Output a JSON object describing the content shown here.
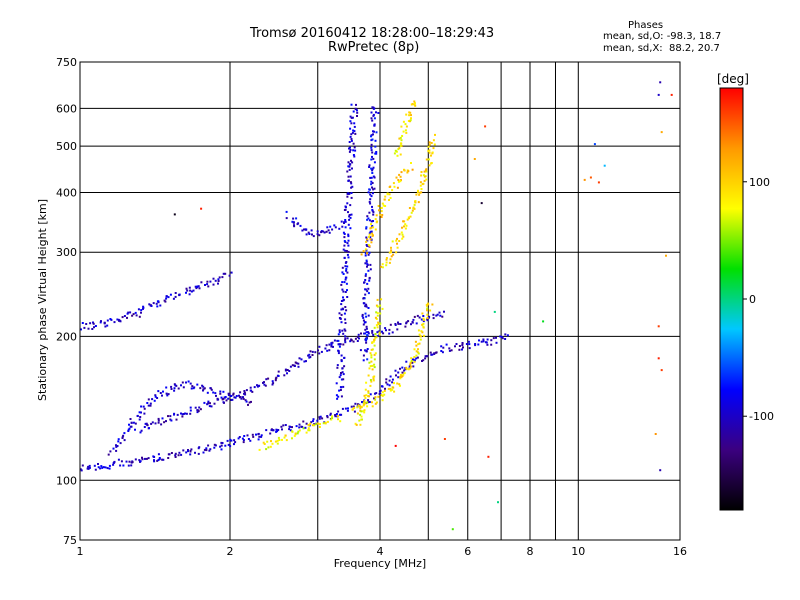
{
  "chart_data": {
    "type": "scatter",
    "title": "Tromsø 20160412 18:28:00–18:29:43",
    "subtitle": "RwPretec (8p)",
    "xlabel": "Frequency [MHz]",
    "ylabel": "Stationary phase Virtual Height [km]",
    "x_scale": "log",
    "y_scale": "log",
    "xlim": [
      1,
      16
    ],
    "ylim": [
      75,
      750
    ],
    "x_ticks": [
      1,
      2,
      4,
      6,
      8,
      10,
      16
    ],
    "x_tick_labels": [
      "1",
      "2",
      "4",
      "6",
      "8",
      "10",
      "16"
    ],
    "x_grid": [
      1,
      2,
      3,
      4,
      5,
      6,
      7,
      8,
      9,
      10,
      16
    ],
    "y_ticks": [
      75,
      100,
      200,
      300,
      400,
      500,
      600,
      750
    ],
    "y_tick_labels": [
      "75",
      "100",
      "200",
      "300",
      "400",
      "500",
      "600",
      "750"
    ],
    "grid": true,
    "phases": {
      "heading": "Phases",
      "o_mode": "mean, sd,O: -98.3, 18.7",
      "x_mode": "mean, sd,X:  88.2, 20.7"
    },
    "colorbar": {
      "label": "[deg]",
      "range": [
        -180,
        180
      ],
      "ticks": [
        100,
        0,
        -100
      ],
      "tick_labels": [
        "100",
        "0",
        "-100"
      ],
      "colors": [
        "#000000",
        "#3b0080",
        "#0000ff",
        "#00c8ff",
        "#00e000",
        "#ffff00",
        "#ff9900",
        "#ff0000"
      ]
    },
    "series": [
      {
        "mode": "O",
        "phase_mean": -98.3,
        "phase_sd": 18.7
      },
      {
        "mode": "X",
        "phase_mean": 88.2,
        "phase_sd": 20.7
      }
    ],
    "traces": [
      {
        "x": [
          1.0,
          1.2,
          1.5,
          1.8,
          2.1,
          2.5,
          2.8,
          3.0,
          3.2,
          3.5,
          3.8,
          4.1,
          4.5,
          5.0,
          5.5,
          6.0,
          6.6,
          7.2
        ],
        "y": [
          106,
          109,
          113,
          117,
          122,
          128,
          131,
          134,
          137,
          142,
          148,
          160,
          175,
          185,
          190,
          193,
          196,
          200
        ],
        "phase": -100
      },
      {
        "x": [
          1.3,
          1.5,
          1.8,
          2.1,
          2.4,
          2.7,
          3.0,
          3.3,
          3.6,
          4.0,
          4.4,
          4.9,
          5.4
        ],
        "y": [
          128,
          135,
          145,
          152,
          162,
          175,
          188,
          195,
          200,
          205,
          212,
          220,
          225
        ],
        "phase": -105
      },
      {
        "x": [
          1.0,
          1.15,
          1.3,
          1.5,
          1.7,
          1.9,
          2.0
        ],
        "y": [
          210,
          215,
          225,
          240,
          255,
          265,
          270
        ],
        "phase": -100
      },
      {
        "x": [
          1.15,
          1.25,
          1.4,
          1.6,
          1.8,
          2.0,
          2.2
        ],
        "y": [
          115,
          130,
          150,
          160,
          155,
          150,
          145
        ],
        "phase": -100
      },
      {
        "x": [
          2.6,
          2.7,
          2.8,
          3.0,
          3.2,
          3.4
        ],
        "y": [
          360,
          345,
          335,
          330,
          340,
          345
        ],
        "phase": -95
      },
      {
        "x": [
          3.3,
          3.35,
          3.4,
          3.45,
          3.5,
          3.55
        ],
        "y": [
          150,
          220,
          300,
          400,
          500,
          620
        ],
        "phase": -95
      },
      {
        "x": [
          3.7,
          3.75,
          3.8,
          3.85,
          3.9
        ],
        "y": [
          180,
          260,
          360,
          480,
          620
        ],
        "phase": -90
      },
      {
        "x": [
          3.5,
          3.8,
          4.0,
          4.3,
          4.6,
          4.8,
          5.0
        ],
        "y": [
          140,
          145,
          150,
          160,
          175,
          200,
          240
        ],
        "phase": 90
      },
      {
        "x": [
          4.0,
          4.2,
          4.4,
          4.6,
          4.8,
          5.0,
          5.1
        ],
        "y": [
          280,
          300,
          330,
          370,
          410,
          470,
          530
        ],
        "phase": 95
      },
      {
        "x": [
          3.7,
          3.9,
          4.1,
          4.3,
          4.6
        ],
        "y": [
          300,
          350,
          390,
          420,
          460
        ],
        "phase": 100
      },
      {
        "x": [
          4.3,
          4.4,
          4.5,
          4.6,
          4.7
        ],
        "y": [
          480,
          520,
          560,
          600,
          630
        ],
        "phase": 90
      },
      {
        "x": [
          2.3,
          2.5,
          2.8,
          3.0,
          3.3
        ],
        "y": [
          118,
          122,
          128,
          132,
          136
        ],
        "phase": 80
      },
      {
        "x": [
          3.6,
          3.8,
          3.9,
          4.0
        ],
        "y": [
          130,
          160,
          200,
          240
        ],
        "phase": 85
      }
    ],
    "outliers": [
      {
        "x": 1.55,
        "y": 360,
        "phase": -170
      },
      {
        "x": 1.75,
        "y": 370,
        "phase": 170
      },
      {
        "x": 6.5,
        "y": 550,
        "phase": 160
      },
      {
        "x": 6.2,
        "y": 470,
        "phase": 120
      },
      {
        "x": 6.4,
        "y": 380,
        "phase": -160
      },
      {
        "x": 6.8,
        "y": 225,
        "phase": 0
      },
      {
        "x": 8.5,
        "y": 215,
        "phase": 20
      },
      {
        "x": 4.3,
        "y": 118,
        "phase": 180
      },
      {
        "x": 5.4,
        "y": 122,
        "phase": 160
      },
      {
        "x": 6.6,
        "y": 112,
        "phase": 170
      },
      {
        "x": 6.9,
        "y": 90,
        "phase": 0
      },
      {
        "x": 5.6,
        "y": 79,
        "phase": 40
      },
      {
        "x": 10.3,
        "y": 425,
        "phase": 130
      },
      {
        "x": 10.6,
        "y": 430,
        "phase": 150
      },
      {
        "x": 11.0,
        "y": 420,
        "phase": 160
      },
      {
        "x": 10.8,
        "y": 505,
        "phase": -60
      },
      {
        "x": 11.3,
        "y": 455,
        "phase": -30
      },
      {
        "x": 14.5,
        "y": 640,
        "phase": -100
      },
      {
        "x": 14.6,
        "y": 680,
        "phase": -110
      },
      {
        "x": 15.4,
        "y": 640,
        "phase": 170
      },
      {
        "x": 14.7,
        "y": 535,
        "phase": 120
      },
      {
        "x": 14.5,
        "y": 210,
        "phase": 160
      },
      {
        "x": 15.0,
        "y": 295,
        "phase": 120
      },
      {
        "x": 14.5,
        "y": 180,
        "phase": 170
      },
      {
        "x": 14.3,
        "y": 125,
        "phase": 130
      },
      {
        "x": 14.6,
        "y": 105,
        "phase": -110
      },
      {
        "x": 14.7,
        "y": 170,
        "phase": 160
      }
    ]
  }
}
